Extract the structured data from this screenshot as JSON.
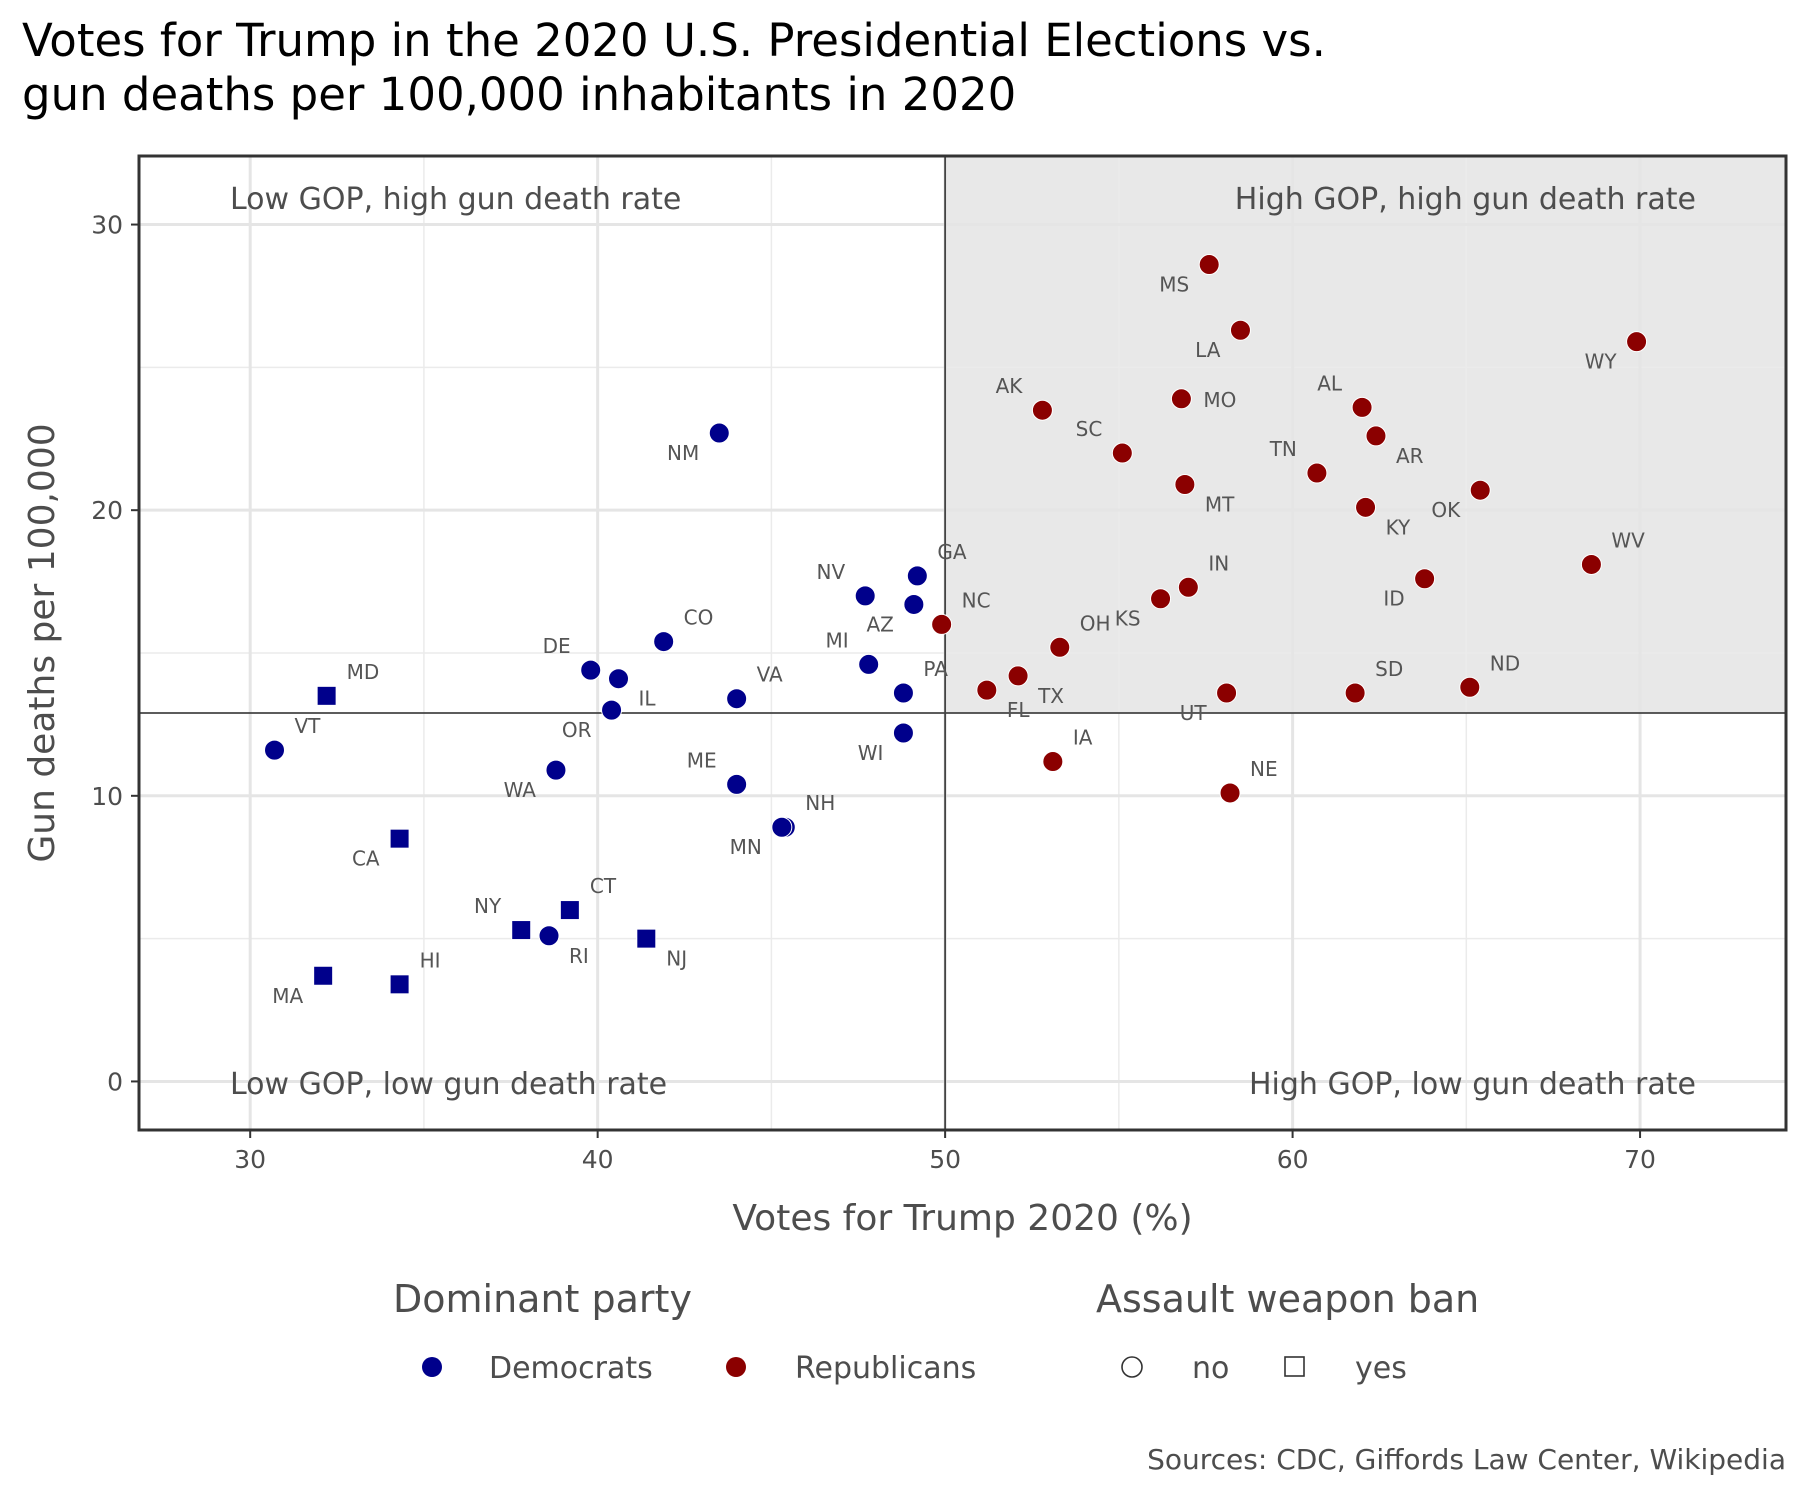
{
  "chart_data": {
    "type": "scatter",
    "title_lines": [
      "Votes for Trump in the 2020 U.S. Presidential Elections vs.",
      "gun deaths per 100,000 inhabitants in 2020"
    ],
    "xlabel": "Votes for Trump 2020 (%)",
    "ylabel": "Gun deaths per 100,000",
    "xlim": [
      26.8,
      74.2
    ],
    "ylim": [
      -1.7,
      32.4
    ],
    "xticks": [
      30,
      40,
      50,
      60,
      70
    ],
    "yticks": [
      0,
      10,
      20,
      30
    ],
    "grid": true,
    "divider": {
      "x": 50,
      "y": 12.9
    },
    "quadrant_labels": {
      "top_left": "Low GOP, high gun death rate",
      "top_right": "High GOP, high gun death rate",
      "bottom_left": "Low GOP, low gun death rate",
      "bottom_right": "High GOP, low gun death rate"
    },
    "colors": {
      "Democrats": "#00008b",
      "Republicans": "#8b0000",
      "highlight": "#e8e8e8"
    },
    "legend": {
      "placement": "bottom",
      "party_title": "Dominant party",
      "party_items": [
        "Democrats",
        "Republicans"
      ],
      "ban_title": "Assault weapon ban",
      "ban_items": [
        "no",
        "yes"
      ]
    },
    "caption": "Sources: CDC, Giffords Law Center, Wikipedia",
    "points": [
      {
        "state": "MS",
        "x": 57.6,
        "y": 28.6,
        "party": "Republicans",
        "ban": "no",
        "lp": "ll"
      },
      {
        "state": "LA",
        "x": 58.5,
        "y": 26.3,
        "party": "Republicans",
        "ban": "no",
        "lp": "ll"
      },
      {
        "state": "WY",
        "x": 69.9,
        "y": 25.9,
        "party": "Republicans",
        "ban": "no",
        "lp": "ll"
      },
      {
        "state": "AK",
        "x": 52.8,
        "y": 23.5,
        "party": "Republicans",
        "ban": "no",
        "lp": "ul"
      },
      {
        "state": "MO",
        "x": 56.8,
        "y": 23.9,
        "party": "Republicans",
        "ban": "no",
        "lp": "r"
      },
      {
        "state": "AL",
        "x": 62.0,
        "y": 23.6,
        "party": "Republicans",
        "ban": "no",
        "lp": "ul"
      },
      {
        "state": "AR",
        "x": 62.4,
        "y": 22.6,
        "party": "Republicans",
        "ban": "no",
        "lp": "lr"
      },
      {
        "state": "SC",
        "x": 55.1,
        "y": 22.0,
        "party": "Republicans",
        "ban": "no",
        "lp": "ul"
      },
      {
        "state": "TN",
        "x": 60.7,
        "y": 21.3,
        "party": "Republicans",
        "ban": "no",
        "lp": "ul"
      },
      {
        "state": "MT",
        "x": 56.9,
        "y": 20.9,
        "party": "Republicans",
        "ban": "no",
        "lp": "lr"
      },
      {
        "state": "OK",
        "x": 65.4,
        "y": 20.7,
        "party": "Republicans",
        "ban": "no",
        "lp": "ll"
      },
      {
        "state": "KY",
        "x": 62.1,
        "y": 20.1,
        "party": "Republicans",
        "ban": "no",
        "lp": "lr"
      },
      {
        "state": "WV",
        "x": 68.6,
        "y": 18.1,
        "party": "Republicans",
        "ban": "no",
        "lp": "ur"
      },
      {
        "state": "ID",
        "x": 63.8,
        "y": 17.6,
        "party": "Republicans",
        "ban": "no",
        "lp": "ll"
      },
      {
        "state": "IN",
        "x": 57.0,
        "y": 17.3,
        "party": "Republicans",
        "ban": "no",
        "lp": "ur"
      },
      {
        "state": "KS",
        "x": 56.2,
        "y": 16.9,
        "party": "Republicans",
        "ban": "no",
        "lp": "ll"
      },
      {
        "state": "NC",
        "x": 49.9,
        "y": 16.0,
        "party": "Republicans",
        "ban": "no",
        "lp": "ur"
      },
      {
        "state": "OH",
        "x": 53.3,
        "y": 15.2,
        "party": "Republicans",
        "ban": "no",
        "lp": "ur"
      },
      {
        "state": "TX",
        "x": 52.1,
        "y": 14.2,
        "party": "Republicans",
        "ban": "no",
        "lp": "lr"
      },
      {
        "state": "FL",
        "x": 51.2,
        "y": 13.7,
        "party": "Republicans",
        "ban": "no",
        "lp": "lr"
      },
      {
        "state": "UT",
        "x": 58.1,
        "y": 13.6,
        "party": "Republicans",
        "ban": "no",
        "lp": "ll"
      },
      {
        "state": "SD",
        "x": 61.8,
        "y": 13.6,
        "party": "Republicans",
        "ban": "no",
        "lp": "ur"
      },
      {
        "state": "ND",
        "x": 65.1,
        "y": 13.8,
        "party": "Republicans",
        "ban": "no",
        "lp": "ur"
      },
      {
        "state": "IA",
        "x": 53.1,
        "y": 11.2,
        "party": "Republicans",
        "ban": "no",
        "lp": "ur"
      },
      {
        "state": "NE",
        "x": 58.2,
        "y": 10.1,
        "party": "Republicans",
        "ban": "no",
        "lp": "ur"
      },
      {
        "state": "NM",
        "x": 43.5,
        "y": 22.7,
        "party": "Democrats",
        "ban": "no",
        "lp": "ll"
      },
      {
        "state": "GA",
        "x": 49.2,
        "y": 17.7,
        "party": "Democrats",
        "ban": "no",
        "lp": "ur"
      },
      {
        "state": "NV",
        "x": 47.7,
        "y": 17.0,
        "party": "Democrats",
        "ban": "no",
        "lp": "ul"
      },
      {
        "state": "AZ",
        "x": 49.1,
        "y": 16.7,
        "party": "Democrats",
        "ban": "no",
        "lp": "ll"
      },
      {
        "state": "CO",
        "x": 41.9,
        "y": 15.4,
        "party": "Democrats",
        "ban": "no",
        "lp": "ur"
      },
      {
        "state": "MI",
        "x": 47.8,
        "y": 14.6,
        "party": "Democrats",
        "ban": "no",
        "lp": "ul"
      },
      {
        "state": "DE",
        "x": 39.8,
        "y": 14.4,
        "party": "Democrats",
        "ban": "no",
        "lp": "ul"
      },
      {
        "state": "IL",
        "x": 40.6,
        "y": 14.1,
        "party": "Democrats",
        "ban": "no",
        "lp": "lr"
      },
      {
        "state": "PA",
        "x": 48.8,
        "y": 13.6,
        "party": "Democrats",
        "ban": "no",
        "lp": "ur"
      },
      {
        "state": "VA",
        "x": 44.0,
        "y": 13.4,
        "party": "Democrats",
        "ban": "no",
        "lp": "ur"
      },
      {
        "state": "OR",
        "x": 40.4,
        "y": 13.0,
        "party": "Democrats",
        "ban": "no",
        "lp": "ll"
      },
      {
        "state": "WI",
        "x": 48.8,
        "y": 12.2,
        "party": "Democrats",
        "ban": "no",
        "lp": "ll"
      },
      {
        "state": "VT",
        "x": 30.7,
        "y": 11.6,
        "party": "Democrats",
        "ban": "no",
        "lp": "ur"
      },
      {
        "state": "WA",
        "x": 38.8,
        "y": 10.9,
        "party": "Democrats",
        "ban": "no",
        "lp": "ll"
      },
      {
        "state": "ME",
        "x": 44.0,
        "y": 10.4,
        "party": "Democrats",
        "ban": "no",
        "lp": "ul"
      },
      {
        "state": "NH",
        "x": 45.4,
        "y": 8.9,
        "party": "Democrats",
        "ban": "no",
        "lp": "ur"
      },
      {
        "state": "MN",
        "x": 45.3,
        "y": 8.9,
        "party": "Democrats",
        "ban": "no",
        "lp": "ll"
      },
      {
        "state": "RI",
        "x": 38.6,
        "y": 5.1,
        "party": "Democrats",
        "ban": "no",
        "lp": "lr"
      },
      {
        "state": "MD",
        "x": 32.2,
        "y": 13.5,
        "party": "Democrats",
        "ban": "yes",
        "lp": "ur"
      },
      {
        "state": "CA",
        "x": 34.3,
        "y": 8.5,
        "party": "Democrats",
        "ban": "yes",
        "lp": "ll"
      },
      {
        "state": "CT",
        "x": 39.2,
        "y": 6.0,
        "party": "Democrats",
        "ban": "yes",
        "lp": "ur"
      },
      {
        "state": "NY",
        "x": 37.8,
        "y": 5.3,
        "party": "Democrats",
        "ban": "yes",
        "lp": "ul"
      },
      {
        "state": "NJ",
        "x": 41.4,
        "y": 5.0,
        "party": "Democrats",
        "ban": "yes",
        "lp": "lr"
      },
      {
        "state": "MA",
        "x": 32.1,
        "y": 3.7,
        "party": "Democrats",
        "ban": "yes",
        "lp": "ll"
      },
      {
        "state": "HI",
        "x": 34.3,
        "y": 3.4,
        "party": "Democrats",
        "ban": "yes",
        "lp": "ur"
      }
    ]
  }
}
